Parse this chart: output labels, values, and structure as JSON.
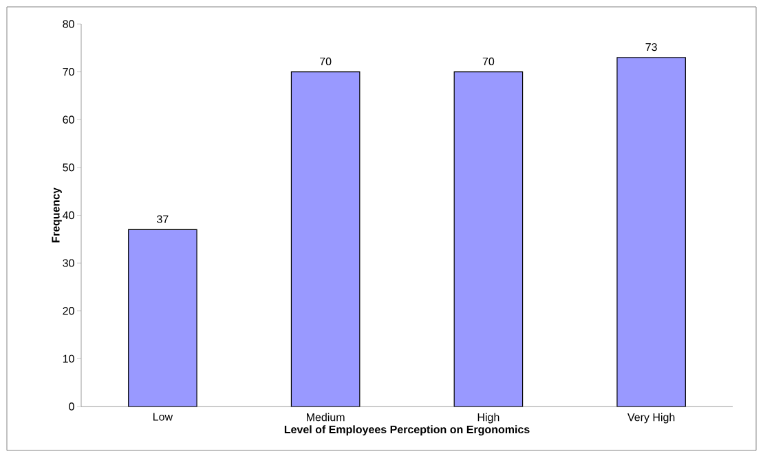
{
  "chart_data": {
    "type": "bar",
    "xlabel": "Level of Employees Perception on Ergonomics",
    "ylabel": "Frequency",
    "categories": [
      "Low",
      "Medium",
      "High",
      "Very High"
    ],
    "values": [
      37,
      70,
      70,
      73
    ],
    "color": "#9999ff",
    "ylim": [
      0,
      80
    ],
    "yticks": [
      0,
      10,
      20,
      30,
      40,
      50,
      60,
      70,
      80
    ],
    "data_labels": true
  }
}
